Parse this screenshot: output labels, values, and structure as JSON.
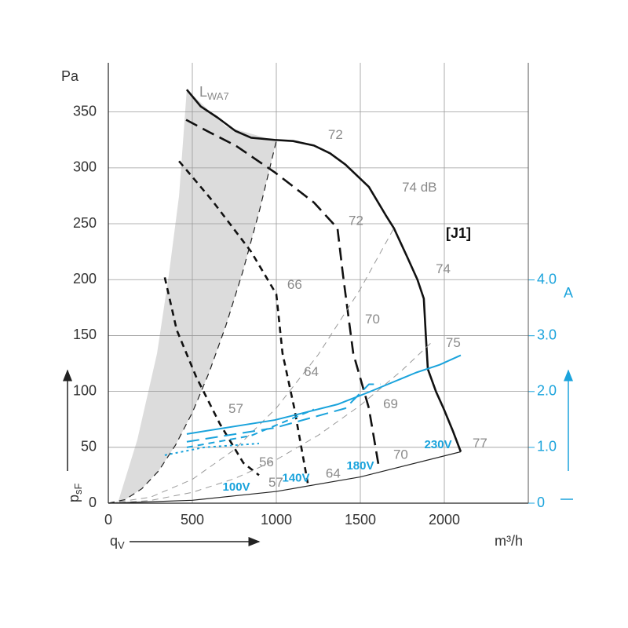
{
  "chart_data": {
    "type": "line",
    "y_unit": "Pa",
    "x_unit": "m³/h",
    "y2_unit": "A",
    "xlabel": {
      "main": "q",
      "sub": "V"
    },
    "ylabel": {
      "main": "p",
      "sub": "sF"
    },
    "tag": "[J1]",
    "xlim": [
      0,
      2500
    ],
    "xticks": [
      0,
      500,
      1000,
      1500,
      2000
    ],
    "ylim": [
      0,
      394
    ],
    "yticks": [
      0,
      50,
      100,
      150,
      200,
      250,
      300,
      350
    ],
    "y2lim": [
      0,
      7.89
    ],
    "y2ticks": [
      0,
      {
        "value": 1,
        "label": "1.0"
      },
      {
        "value": 2,
        "label": "2.0"
      },
      {
        "value": 3,
        "label": "3.0"
      },
      {
        "value": 4,
        "label": "4.0"
      }
    ],
    "grid": true,
    "area": {
      "color": "#dcdcdc",
      "x": [
        0,
        56,
        173,
        290,
        360,
        421,
        467,
        700,
        1000,
        900,
        800,
        700,
        600,
        500,
        400,
        300,
        200,
        100,
        0
      ],
      "values": [
        0,
        0,
        57,
        134,
        204,
        275,
        370,
        337,
        324,
        262,
        207,
        159,
        117,
        81,
        52,
        29,
        13,
        3.2,
        0
      ]
    },
    "series": [
      {
        "name": "230V",
        "color": "#111111",
        "style": "solid",
        "width": 2.6,
        "label_x": 1963,
        "label_y": 52,
        "label_color": "#1aa3dc",
        "x": [
          467,
          550,
          650,
          757,
          850,
          991,
          1100,
          1224,
          1320,
          1411,
          1551,
          1650,
          1700,
          1780,
          1840,
          1878,
          1890,
          1902,
          1950,
          1995,
          2050,
          2098
        ],
        "values": [
          370,
          355,
          345,
          333,
          327,
          325,
          324,
          320,
          313,
          303,
          283,
          258,
          246,
          220,
          200,
          183,
          150,
          120,
          100,
          85,
          65,
          46
        ]
      },
      {
        "name": "180V",
        "color": "#111111",
        "style": "longdash",
        "width": 2.6,
        "label_x": 1500,
        "label_y": 33,
        "label_color": "#1aa3dc",
        "x": [
          463,
          600,
          757,
          991,
          1224,
          1364,
          1397,
          1458,
          1551,
          1612
        ],
        "values": [
          343,
          332,
          320,
          296,
          269,
          246,
          204,
          134,
          85,
          31
        ]
      },
      {
        "name": "140V",
        "color": "#111111",
        "style": "dash",
        "width": 2.6,
        "label_x": 1117,
        "label_y": 22,
        "label_color": "#1aa3dc",
        "x": [
          421,
          617,
          850,
          1000,
          1037,
          1107,
          1187
        ],
        "values": [
          306,
          271,
          225,
          187,
          134,
          85,
          18
        ]
      },
      {
        "name": "100V",
        "color": "#111111",
        "style": "dash",
        "width": 2.6,
        "label_x": 762,
        "label_y": 14,
        "label_color": "#1aa3dc",
        "x": [
          336,
          407,
          523,
          664,
          804,
          897
        ],
        "values": [
          202,
          155,
          113,
          71,
          36,
          25
        ]
      },
      {
        "color": "#999999",
        "style": "dash",
        "width": 1,
        "x": [
          0,
          250,
          500,
          750,
          1000,
          1250,
          1500,
          1700
        ],
        "values": [
          0,
          5.3,
          21.3,
          47.9,
          85.1,
          133,
          191.5,
          246
        ]
      },
      {
        "color": "#999999",
        "style": "dash",
        "width": 1,
        "x": [
          0,
          250,
          500,
          750,
          1000,
          1250,
          1500,
          1750,
          1925
        ],
        "values": [
          0,
          2.4,
          9.7,
          21.9,
          38.9,
          60.8,
          87.5,
          119.1,
          144
        ]
      },
      {
        "color": "#222222",
        "style": "solid",
        "width": 1.2,
        "x": [
          0,
          500,
          1000,
          1500,
          2098
        ],
        "values": [
          0,
          2.6,
          10.5,
          23.5,
          46
        ]
      },
      {
        "color": "#222222",
        "style": "dash",
        "width": 1.2,
        "x": [
          0,
          100,
          200,
          300,
          400,
          500,
          600,
          700,
          800,
          900,
          1000
        ],
        "values": [
          0,
          3.2,
          13,
          29,
          52,
          81,
          117,
          159,
          207,
          262,
          324
        ]
      },
      {
        "color": "#1aa3dc",
        "style": "solid",
        "width": 2,
        "axis": "y2",
        "x": [
          467,
          991,
          1364,
          1551,
          1832,
          1972,
          2098
        ],
        "values": [
          1.24,
          1.49,
          1.77,
          1.99,
          2.34,
          2.48,
          2.65
        ]
      },
      {
        "color": "#1aa3dc",
        "style": "longdash",
        "width": 2,
        "axis": "y2",
        "x": [
          467,
          991,
          1411,
          1551,
          1620
        ],
        "values": [
          1.1,
          1.35,
          1.7,
          2.13,
          2.13
        ]
      },
      {
        "color": "#1aa3dc",
        "style": "dash",
        "width": 2,
        "axis": "y2",
        "x": [
          467,
          850,
          1224
        ],
        "values": [
          1.0,
          1.21,
          1.68
        ]
      },
      {
        "color": "#1aa3dc",
        "style": "dot",
        "width": 2,
        "axis": "y2",
        "x": [
          336,
          570,
          897
        ],
        "values": [
          0.86,
          1.0,
          1.07
        ]
      }
    ],
    "annotations": [
      {
        "text": "72",
        "x": 1308,
        "y": 329
      },
      {
        "text": "74 dB",
        "x": 1748,
        "y": 282
      },
      {
        "text": "72",
        "x": 1430,
        "y": 252
      },
      {
        "text": "74",
        "x": 1949,
        "y": 209
      },
      {
        "text": "66",
        "x": 1065,
        "y": 195
      },
      {
        "text": "70",
        "x": 1528,
        "y": 164
      },
      {
        "text": "75",
        "x": 2009,
        "y": 143
      },
      {
        "text": "64",
        "x": 1164,
        "y": 117
      },
      {
        "text": "69",
        "x": 1636,
        "y": 88
      },
      {
        "text": "57",
        "x": 715,
        "y": 84
      },
      {
        "text": "56",
        "x": 897,
        "y": 36
      },
      {
        "text": "57",
        "x": 953,
        "y": 18
      },
      {
        "text": "64",
        "x": 1294,
        "y": 26
      },
      {
        "text": "70",
        "x": 1696,
        "y": 43
      },
      {
        "text": "77",
        "x": 2168,
        "y": 53
      }
    ],
    "lwa": {
      "main": "L",
      "sub": "WA7"
    }
  }
}
